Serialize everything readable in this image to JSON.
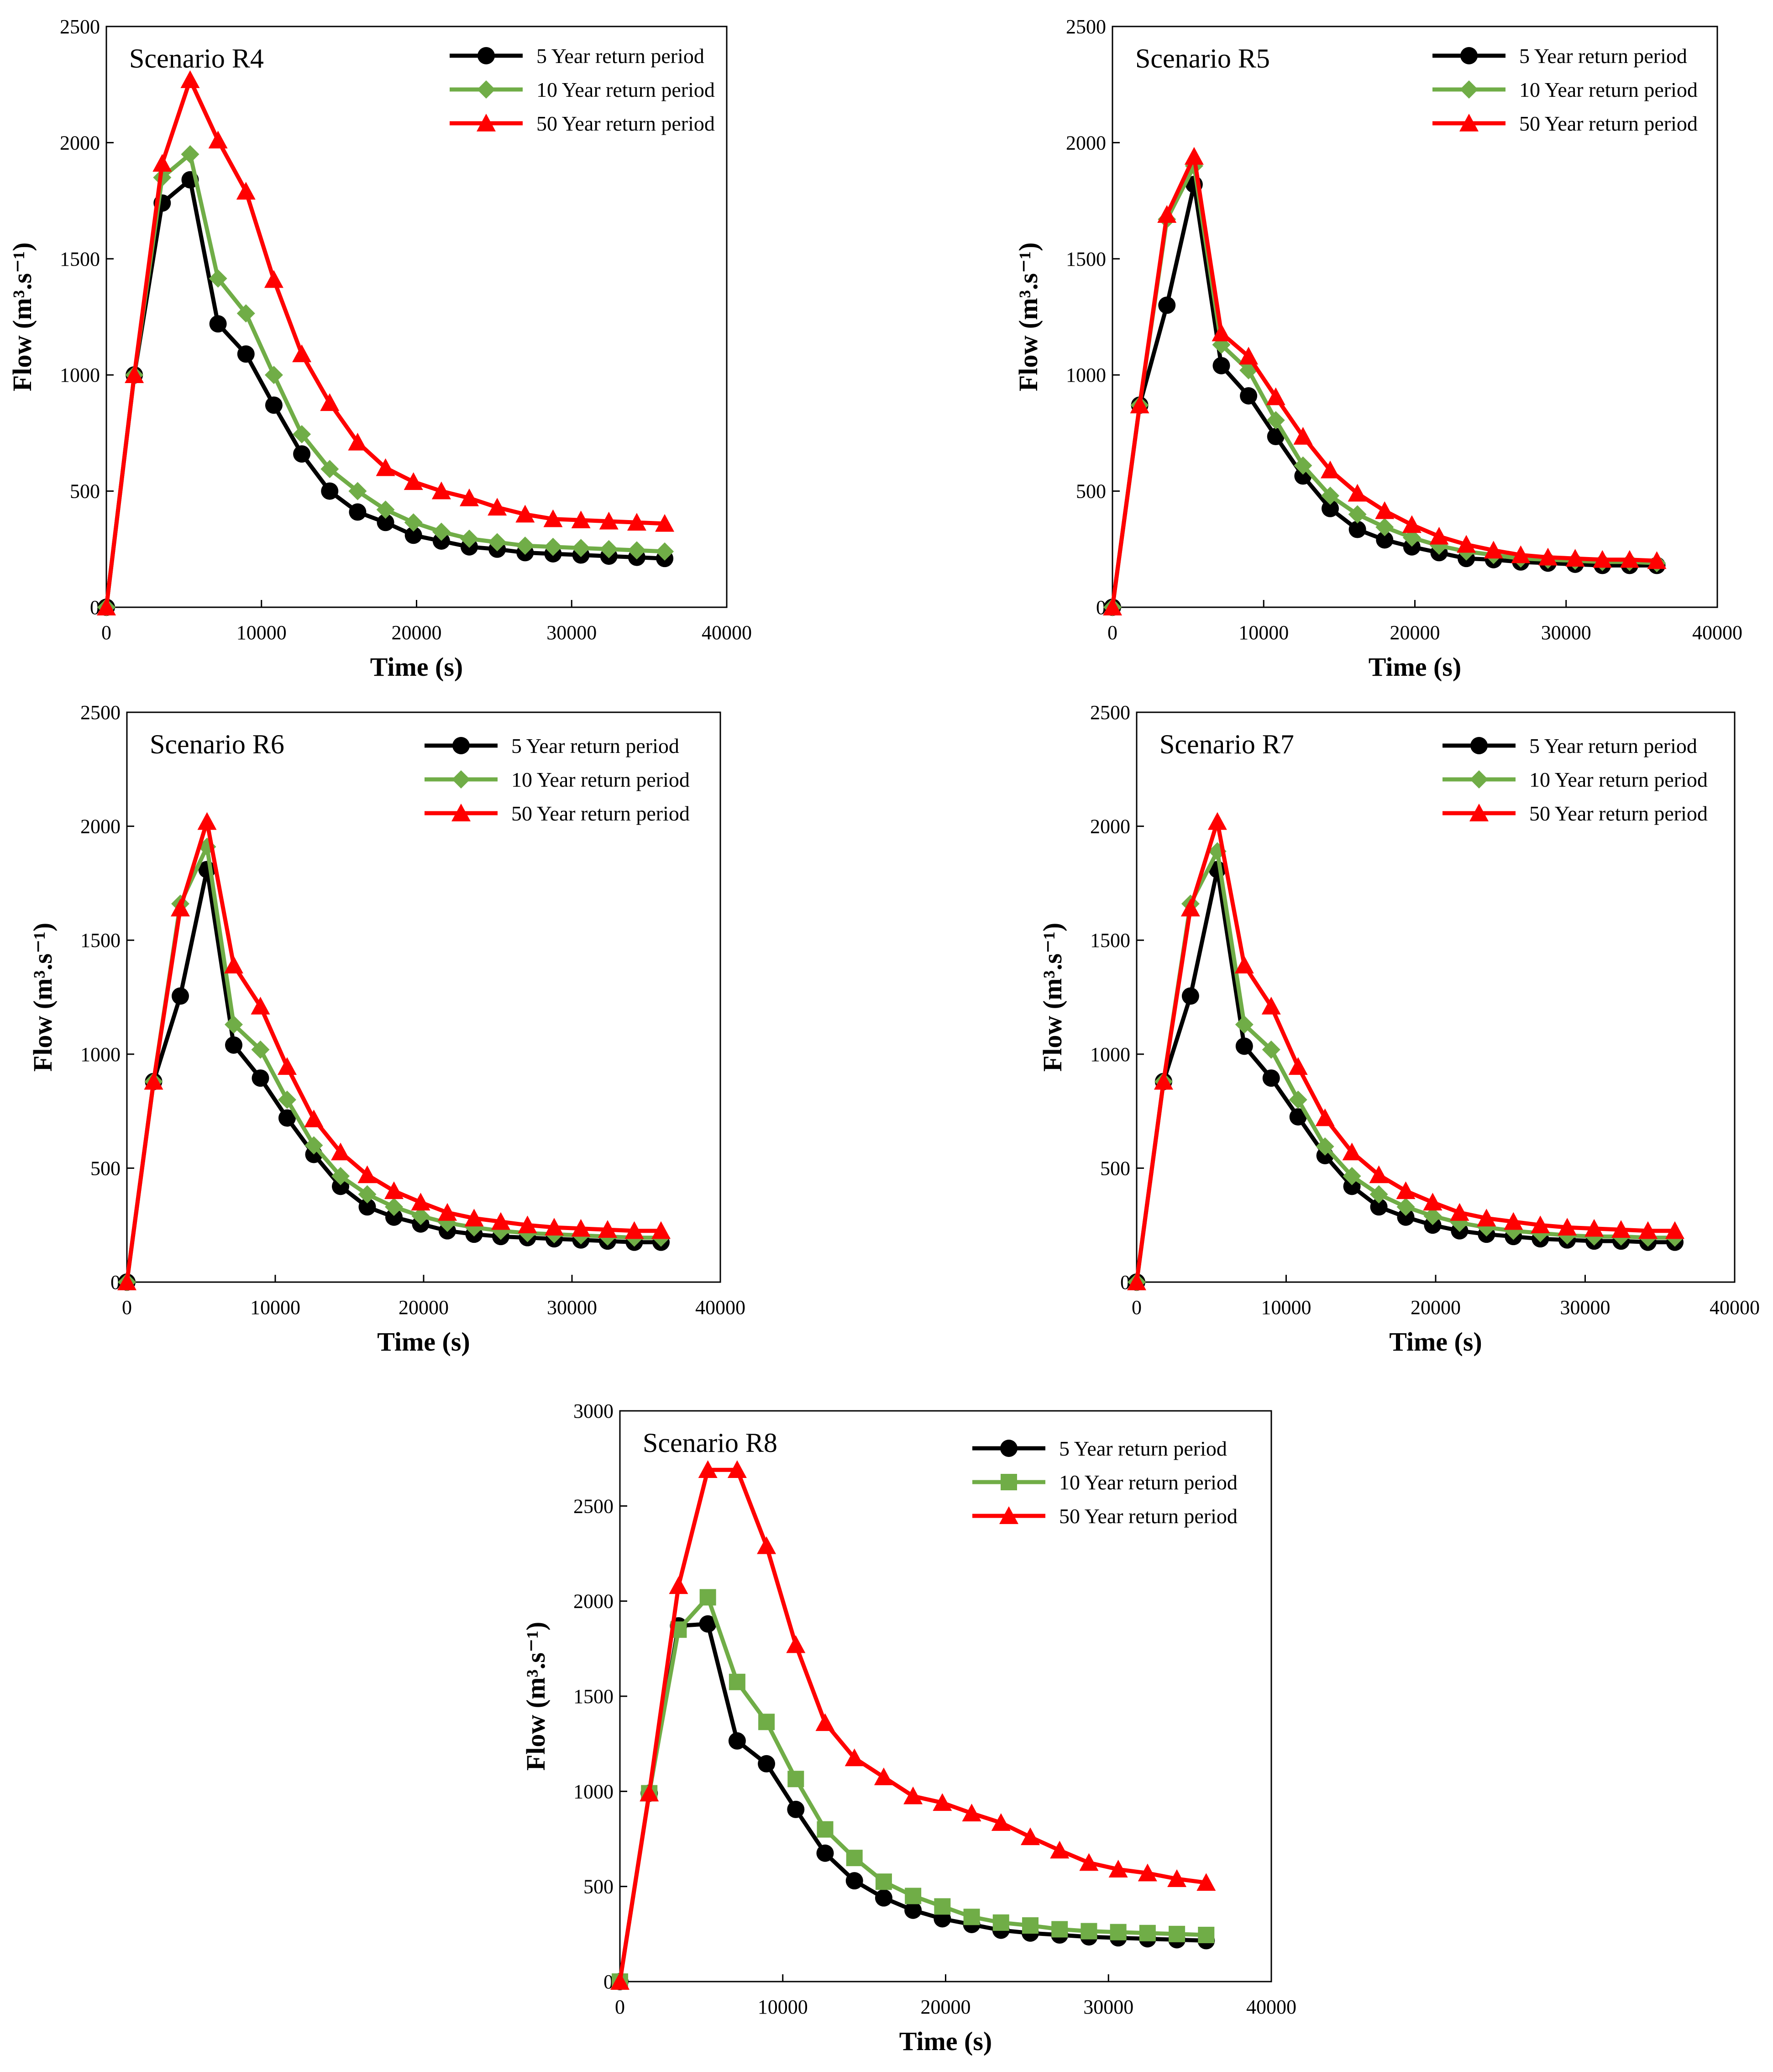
{
  "figure": {
    "colors": {
      "5yr": "#000000",
      "10yr": "#70ad47",
      "50yr": "#ff0000"
    },
    "marker_names": {
      "5yr": "circle",
      "10yr_default": "diamond",
      "50yr": "triangle"
    }
  },
  "chart_data": [
    {
      "type": "line",
      "title": "Scenario R4",
      "xlabel": "Time (s)",
      "ylabel": "Flow (m³.s⁻¹)",
      "xlim": [
        0,
        40000
      ],
      "ylim": [
        0,
        2500
      ],
      "xticks": [
        "0",
        "10000",
        "20000",
        "30000",
        "40000"
      ],
      "yticks": [
        "0",
        "500",
        "1000",
        "1500",
        "2000",
        "2500"
      ],
      "x": [
        0,
        1800,
        3600,
        5400,
        7200,
        9000,
        10800,
        12600,
        14400,
        16200,
        18000,
        19800,
        21600,
        23400,
        25200,
        27000,
        28800,
        30600,
        32400,
        34200,
        36000
      ],
      "series": [
        {
          "name": "5 Year return period",
          "marker": "circle",
          "color": "#000000",
          "values": [
            0,
            1000,
            1740,
            1840,
            1220,
            1090,
            870,
            660,
            500,
            410,
            365,
            310,
            285,
            260,
            250,
            235,
            230,
            225,
            220,
            215,
            210
          ]
        },
        {
          "name": "10 Year return period",
          "marker": "diamond",
          "color": "#70ad47",
          "values": [
            0,
            1000,
            1850,
            1950,
            1415,
            1265,
            1000,
            745,
            595,
            500,
            420,
            365,
            325,
            295,
            280,
            265,
            260,
            255,
            250,
            245,
            240
          ]
        },
        {
          "name": "50 Year return period",
          "marker": "triangle",
          "color": "#ff0000",
          "values": [
            0,
            1000,
            1910,
            2270,
            2010,
            1790,
            1410,
            1090,
            880,
            710,
            600,
            540,
            500,
            470,
            430,
            400,
            380,
            375,
            370,
            365,
            360
          ]
        }
      ]
    },
    {
      "type": "line",
      "title": "Scenario R5",
      "xlabel": "Time (s)",
      "ylabel": "Flow (m³.s⁻¹)",
      "xlim": [
        0,
        40000
      ],
      "ylim": [
        0,
        2500
      ],
      "xticks": [
        "0",
        "10000",
        "20000",
        "30000",
        "40000"
      ],
      "yticks": [
        "0",
        "500",
        "1000",
        "1500",
        "2000",
        "2500"
      ],
      "x": [
        0,
        1800,
        3600,
        5400,
        7200,
        9000,
        10800,
        12600,
        14400,
        16200,
        18000,
        19800,
        21600,
        23400,
        25200,
        27000,
        28800,
        30600,
        32400,
        34200,
        36000
      ],
      "series": [
        {
          "name": "5 Year return period",
          "marker": "circle",
          "color": "#000000",
          "values": [
            0,
            870,
            1300,
            1820,
            1040,
            910,
            735,
            565,
            425,
            335,
            290,
            260,
            235,
            210,
            205,
            195,
            190,
            185,
            180,
            180,
            180
          ]
        },
        {
          "name": "10 Year return period",
          "marker": "diamond",
          "color": "#70ad47",
          "values": [
            0,
            870,
            1670,
            1900,
            1130,
            1020,
            805,
            610,
            480,
            400,
            345,
            300,
            265,
            240,
            225,
            210,
            205,
            200,
            195,
            195,
            190
          ]
        },
        {
          "name": "50 Year return period",
          "marker": "triangle",
          "color": "#ff0000",
          "values": [
            0,
            870,
            1690,
            1940,
            1180,
            1080,
            905,
            735,
            590,
            490,
            415,
            355,
            305,
            270,
            245,
            225,
            215,
            210,
            205,
            205,
            200
          ]
        }
      ]
    },
    {
      "type": "line",
      "title": "Scenario R6",
      "xlabel": "Time (s)",
      "ylabel": "Flow (m³.s⁻¹)",
      "xlim": [
        0,
        40000
      ],
      "ylim": [
        0,
        2500
      ],
      "xticks": [
        "0",
        "10000",
        "20000",
        "30000",
        "40000"
      ],
      "yticks": [
        "0",
        "500",
        "1000",
        "1500",
        "2000",
        "2500"
      ],
      "x": [
        0,
        1800,
        3600,
        5400,
        7200,
        9000,
        10800,
        12600,
        14400,
        16200,
        18000,
        19800,
        21600,
        23400,
        25200,
        27000,
        28800,
        30600,
        32400,
        34200,
        36000
      ],
      "series": [
        {
          "name": "5 Year return period",
          "marker": "circle",
          "color": "#000000",
          "values": [
            0,
            880,
            1255,
            1810,
            1040,
            895,
            720,
            560,
            420,
            330,
            285,
            255,
            225,
            210,
            200,
            195,
            190,
            185,
            180,
            175,
            175
          ]
        },
        {
          "name": "10 Year return period",
          "marker": "diamond",
          "color": "#70ad47",
          "values": [
            0,
            880,
            1660,
            1910,
            1130,
            1020,
            800,
            600,
            465,
            385,
            330,
            290,
            260,
            240,
            225,
            215,
            210,
            205,
            200,
            195,
            195
          ]
        },
        {
          "name": "50 Year return period",
          "marker": "triangle",
          "color": "#ff0000",
          "values": [
            0,
            880,
            1640,
            2020,
            1390,
            1210,
            945,
            715,
            570,
            470,
            400,
            350,
            305,
            280,
            265,
            250,
            240,
            235,
            230,
            225,
            225
          ]
        }
      ]
    },
    {
      "type": "line",
      "title": "Scenario R7",
      "xlabel": "Time (s)",
      "ylabel": "Flow (m³.s⁻¹)",
      "xlim": [
        0,
        40000
      ],
      "ylim": [
        0,
        2500
      ],
      "xticks": [
        "0",
        "10000",
        "20000",
        "30000",
        "40000"
      ],
      "yticks": [
        "0",
        "500",
        "1000",
        "1500",
        "2000",
        "2500"
      ],
      "x": [
        0,
        1800,
        3600,
        5400,
        7200,
        9000,
        10800,
        12600,
        14400,
        16200,
        18000,
        19800,
        21600,
        23400,
        25200,
        27000,
        28800,
        30600,
        32400,
        34200,
        36000
      ],
      "series": [
        {
          "name": "5 Year return period",
          "marker": "circle",
          "color": "#000000",
          "values": [
            0,
            880,
            1255,
            1810,
            1035,
            895,
            725,
            555,
            420,
            330,
            285,
            250,
            225,
            210,
            200,
            190,
            185,
            180,
            180,
            175,
            175
          ]
        },
        {
          "name": "10 Year return period",
          "marker": "diamond",
          "color": "#70ad47",
          "values": [
            0,
            880,
            1660,
            1890,
            1130,
            1020,
            800,
            595,
            465,
            385,
            330,
            290,
            260,
            240,
            225,
            215,
            205,
            200,
            200,
            195,
            195
          ]
        },
        {
          "name": "50 Year return period",
          "marker": "triangle",
          "color": "#ff0000",
          "values": [
            0,
            880,
            1640,
            2020,
            1390,
            1210,
            945,
            720,
            570,
            470,
            400,
            350,
            305,
            280,
            265,
            250,
            240,
            235,
            230,
            225,
            225
          ]
        }
      ]
    },
    {
      "type": "line",
      "title": "Scenario R8",
      "xlabel": "Time (s)",
      "ylabel": "Flow (m³.s⁻¹)",
      "xlim": [
        0,
        40000
      ],
      "ylim": [
        0,
        3000
      ],
      "xticks": [
        "0",
        "10000",
        "20000",
        "30000",
        "40000"
      ],
      "yticks": [
        "0",
        "500",
        "1000",
        "1500",
        "2000",
        "2500",
        "3000"
      ],
      "x": [
        0,
        1800,
        3600,
        5400,
        7200,
        9000,
        10800,
        12600,
        14400,
        16200,
        18000,
        19800,
        21600,
        23400,
        25200,
        27000,
        28800,
        30600,
        32400,
        34200,
        36000
      ],
      "series": [
        {
          "name": "5 Year return period",
          "marker": "circle",
          "color": "#000000",
          "values": [
            0,
            990,
            1870,
            1880,
            1265,
            1145,
            905,
            675,
            530,
            440,
            375,
            330,
            300,
            270,
            255,
            245,
            235,
            230,
            225,
            220,
            215
          ]
        },
        {
          "name": "10 Year return period",
          "marker": "square",
          "color": "#70ad47",
          "values": [
            0,
            990,
            1850,
            2020,
            1575,
            1365,
            1065,
            800,
            650,
            525,
            450,
            395,
            340,
            310,
            295,
            275,
            265,
            260,
            255,
            250,
            245
          ]
        },
        {
          "name": "50 Year return period",
          "marker": "triangle",
          "color": "#ff0000",
          "values": [
            0,
            990,
            2080,
            2690,
            2690,
            2290,
            1770,
            1360,
            1175,
            1075,
            975,
            940,
            885,
            835,
            760,
            690,
            625,
            590,
            570,
            540,
            520
          ]
        }
      ]
    }
  ]
}
